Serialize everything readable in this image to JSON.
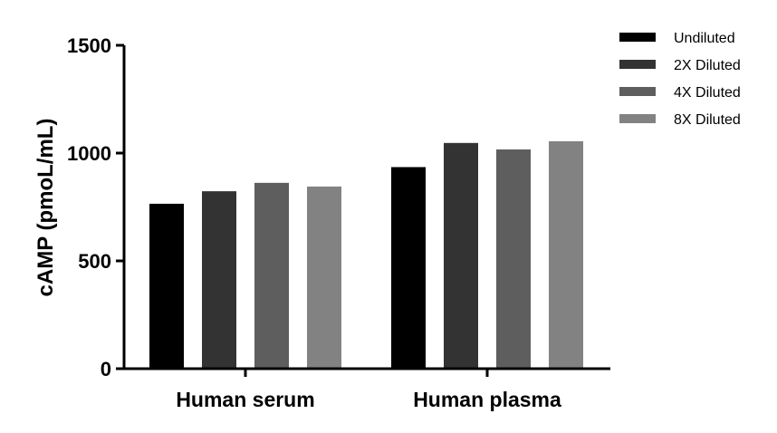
{
  "chart_data": {
    "type": "bar",
    "title": "",
    "xlabel": "",
    "ylabel": "cAMP (pmoL/mL)",
    "ylim": [
      0,
      1500
    ],
    "yticks": [
      0,
      500,
      1000,
      1500
    ],
    "categories": [
      "Human serum",
      "Human plasma"
    ],
    "series": [
      {
        "name": "Undiluted",
        "color": "#000000",
        "values": [
          765,
          935
        ]
      },
      {
        "name": "2X Diluted",
        "color": "#333333",
        "values": [
          823,
          1047
        ]
      },
      {
        "name": "4X Diluted",
        "color": "#5e5e5e",
        "values": [
          862,
          1017
        ]
      },
      {
        "name": "8X Diluted",
        "color": "#828282",
        "values": [
          845,
          1055
        ]
      }
    ],
    "grid": false,
    "legend_position": "top-right"
  }
}
